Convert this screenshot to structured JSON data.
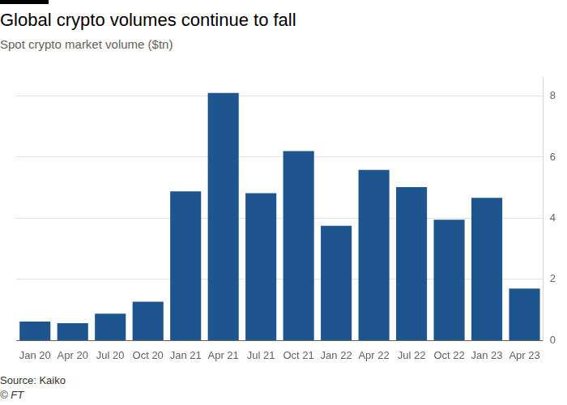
{
  "chart_data": {
    "type": "bar",
    "title": "Global crypto volumes continue to fall",
    "subtitle": "Spot crypto market volume ($tn)",
    "source": "Source: Kaiko",
    "copyright": "© FT",
    "categories": [
      "Jan 20",
      "Apr 20",
      "Jul 20",
      "Oct 20",
      "Jan 21",
      "Apr 21",
      "Jul 21",
      "Oct 21",
      "Jan 22",
      "Apr 22",
      "Jul 22",
      "Oct 22",
      "Jan 23",
      "Apr 23"
    ],
    "values": [
      0.62,
      0.57,
      0.88,
      1.27,
      4.88,
      8.1,
      4.82,
      6.2,
      3.75,
      5.58,
      5.02,
      3.95,
      4.67,
      1.7
    ],
    "color": "#1f558e",
    "ylim": [
      0,
      8.6
    ],
    "yticks": [
      0,
      2,
      4,
      6,
      8
    ],
    "grid": true
  }
}
